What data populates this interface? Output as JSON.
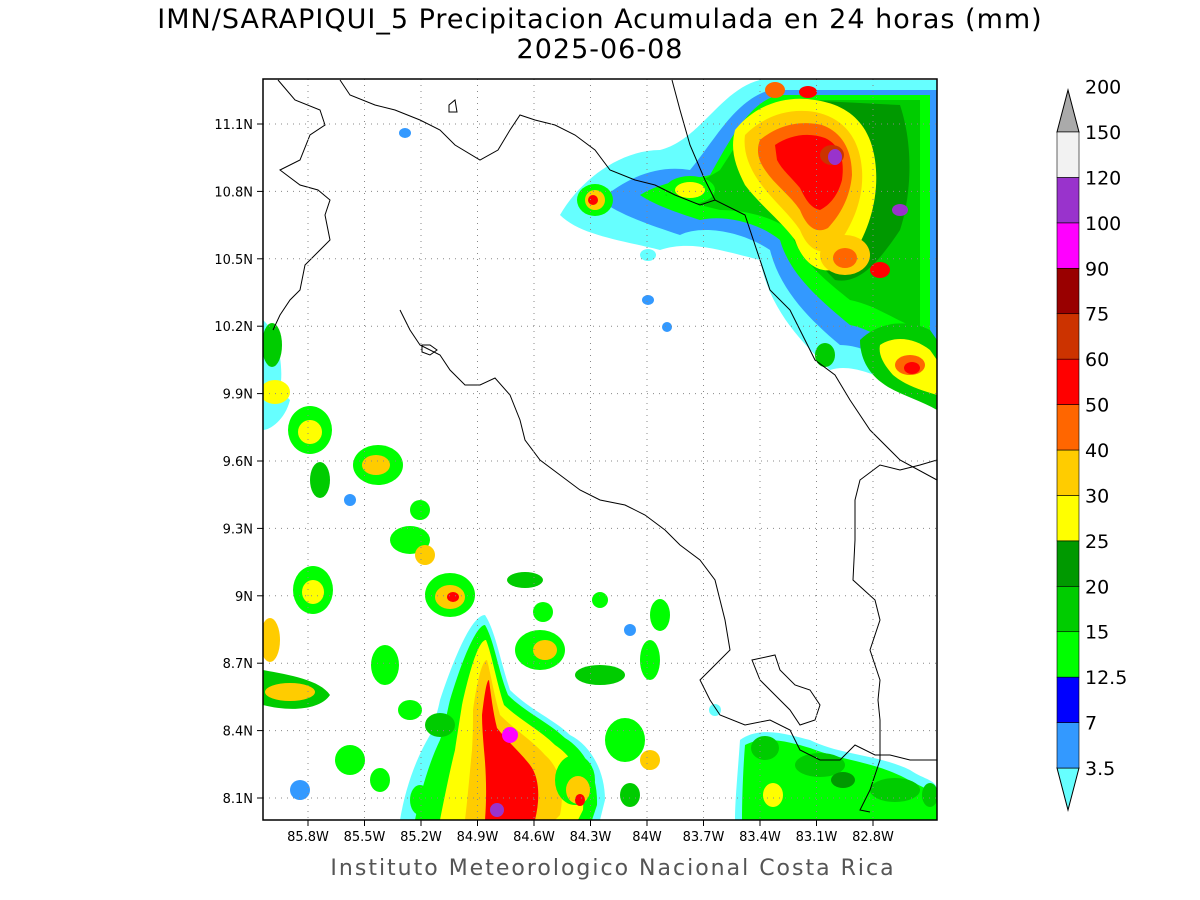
{
  "title": {
    "line1": "IMN/SARAPIQUI_5 Precipitacion Acumulada en 24 horas (mm)",
    "line2": "2025-06-08"
  },
  "footer": "Instituto Meteorologico Nacional Costa Rica",
  "map": {
    "lon_range": [
      -86.0,
      -83.0
    ],
    "lat_range": [
      8.0,
      11.3
    ],
    "lon_ticks": [
      "85.8W",
      "85.5W",
      "85.2W",
      "84.9W",
      "84.6W",
      "84.3W",
      "84W",
      "83.7W",
      "83.4W",
      "83.1W",
      "82.8W"
    ],
    "lat_ticks": [
      "11.1N",
      "10.8N",
      "10.5N",
      "10.2N",
      "9.9N",
      "9.6N",
      "9.3N",
      "9N",
      "8.7N",
      "8.4N",
      "8.1N"
    ],
    "gridlines": "dotted"
  },
  "colorbar": {
    "levels": [
      "3.5",
      "7",
      "12.5",
      "15",
      "20",
      "25",
      "30",
      "40",
      "50",
      "60",
      "75",
      "90",
      "100",
      "120",
      "150",
      "200"
    ],
    "colors": [
      "#66ffff",
      "#3399ff",
      "#0000ff",
      "#00ff00",
      "#00cc00",
      "#009900",
      "#ffff00",
      "#ffcc00",
      "#ff6600",
      "#ff0000",
      "#cc3300",
      "#990000",
      "#ff00ff",
      "#9933cc",
      "#f2f2f2",
      "#aaaaaa"
    ]
  }
}
